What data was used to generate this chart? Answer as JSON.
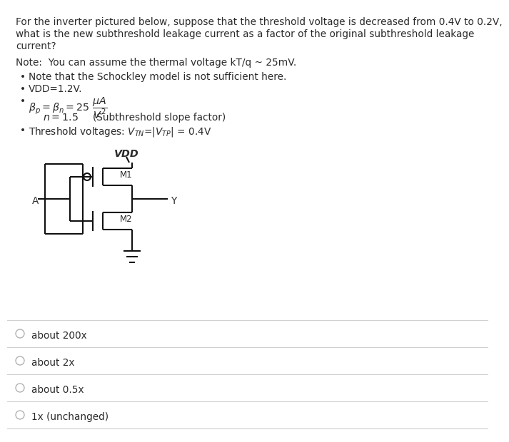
{
  "title_lines": [
    "For the inverter pictured below, suppose that the threshold voltage is decreased from 0.4V to 0.2V,",
    "what is the new subthreshold leakage current as a factor of the original subthreshold leakage",
    "current?"
  ],
  "note_line": "Note:  You can assume the thermal voltage kT/q ~ 25mV.",
  "bullets": [
    "Note that the Schockley model is not sufficient here.",
    "VDD=1.2V."
  ],
  "choices": [
    "about 200x",
    "about 2x",
    "about 0.5x",
    "1x (unchanged)"
  ],
  "bg_color": "#ffffff",
  "text_color": "#2b2b2b",
  "line_color": "#111111",
  "choice_circle_color": "#aaaaaa",
  "divider_color": "#d0d0d0",
  "title_fontsize": 9.8,
  "body_fontsize": 9.8,
  "small_fontsize": 8.5
}
